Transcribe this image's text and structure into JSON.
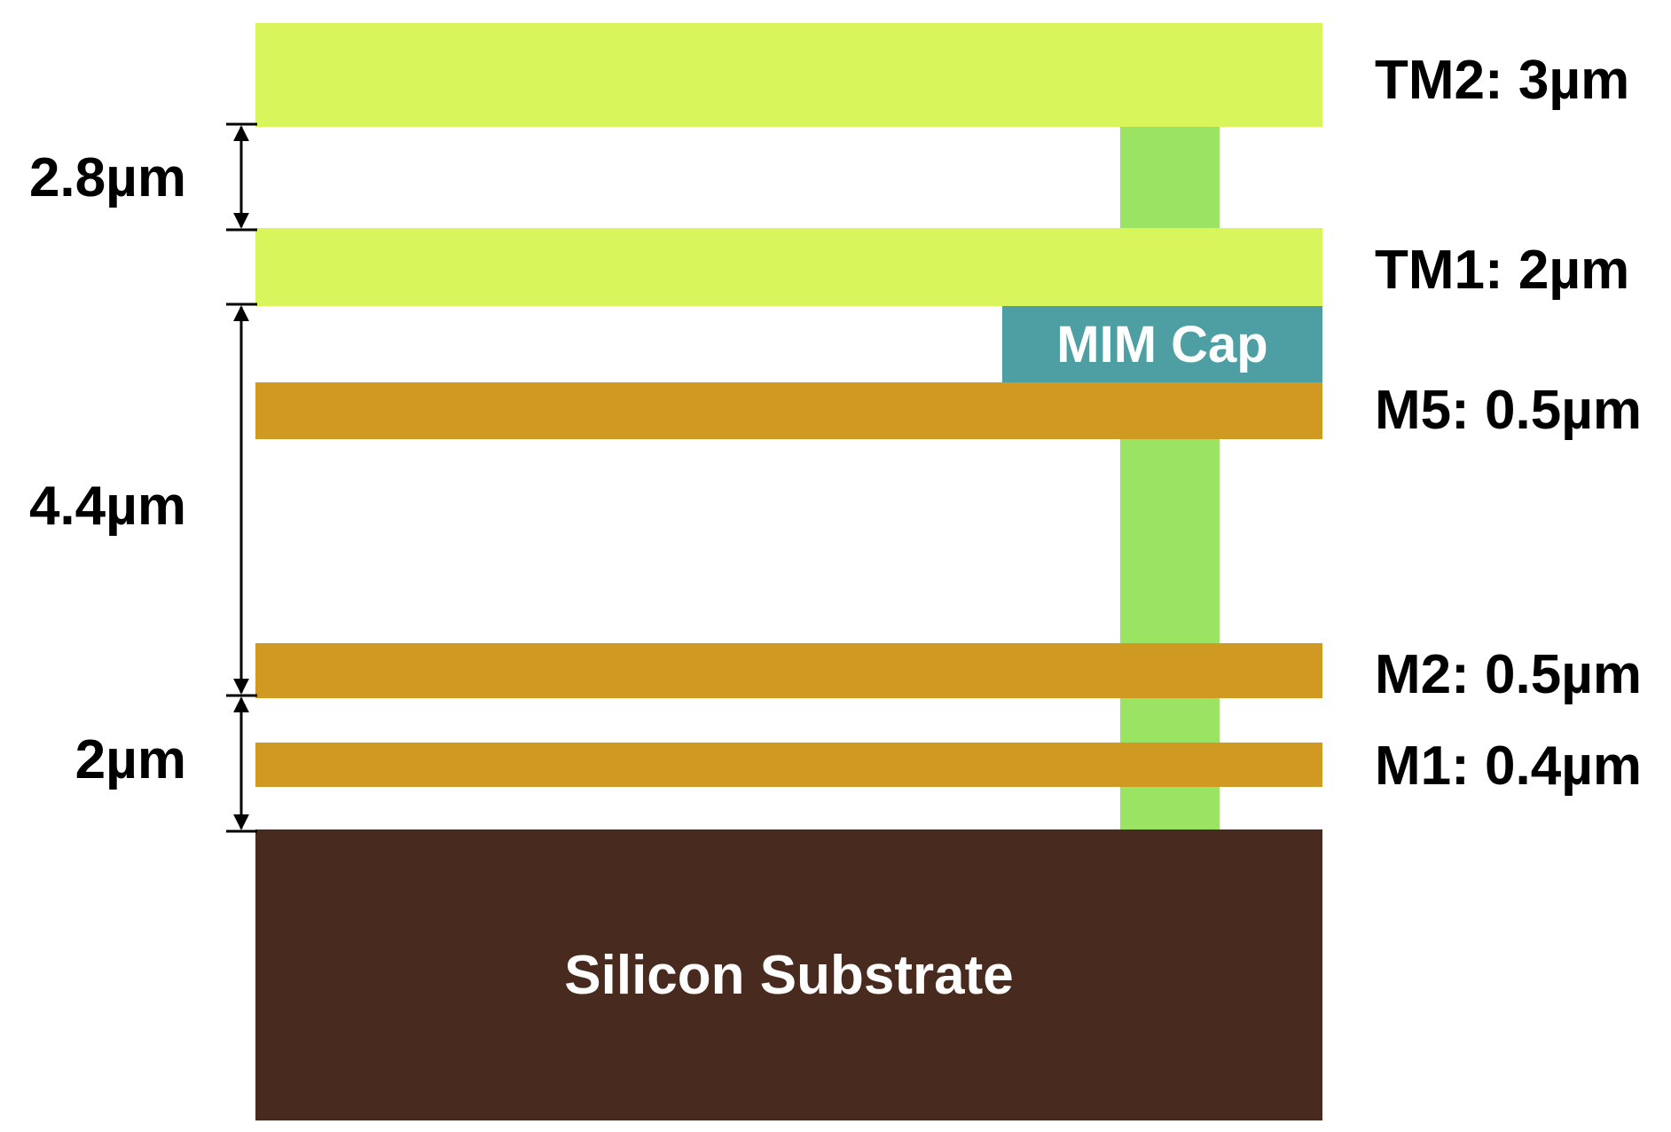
{
  "colors": {
    "top_metal": "#d8f55c",
    "via": "#9ae363",
    "mim_cap": "#4e9fa3",
    "metal": "#d09a22",
    "substrate": "#482b1e",
    "dimension_line": "#000000"
  },
  "layers": {
    "tm2": "TM2: 3µm",
    "tm1": "TM1: 2µm",
    "m5": "M5: 0.5µm",
    "m2": "M2: 0.5µm",
    "m1": "M1: 0.4µm"
  },
  "mim_cap": "MIM Cap",
  "substrate": "Silicon Substrate",
  "dimensions": {
    "tm2_to_tm1": "2.8µm",
    "tm1_to_m2": "4.4µm",
    "m2_to_substrate": "2µm"
  }
}
